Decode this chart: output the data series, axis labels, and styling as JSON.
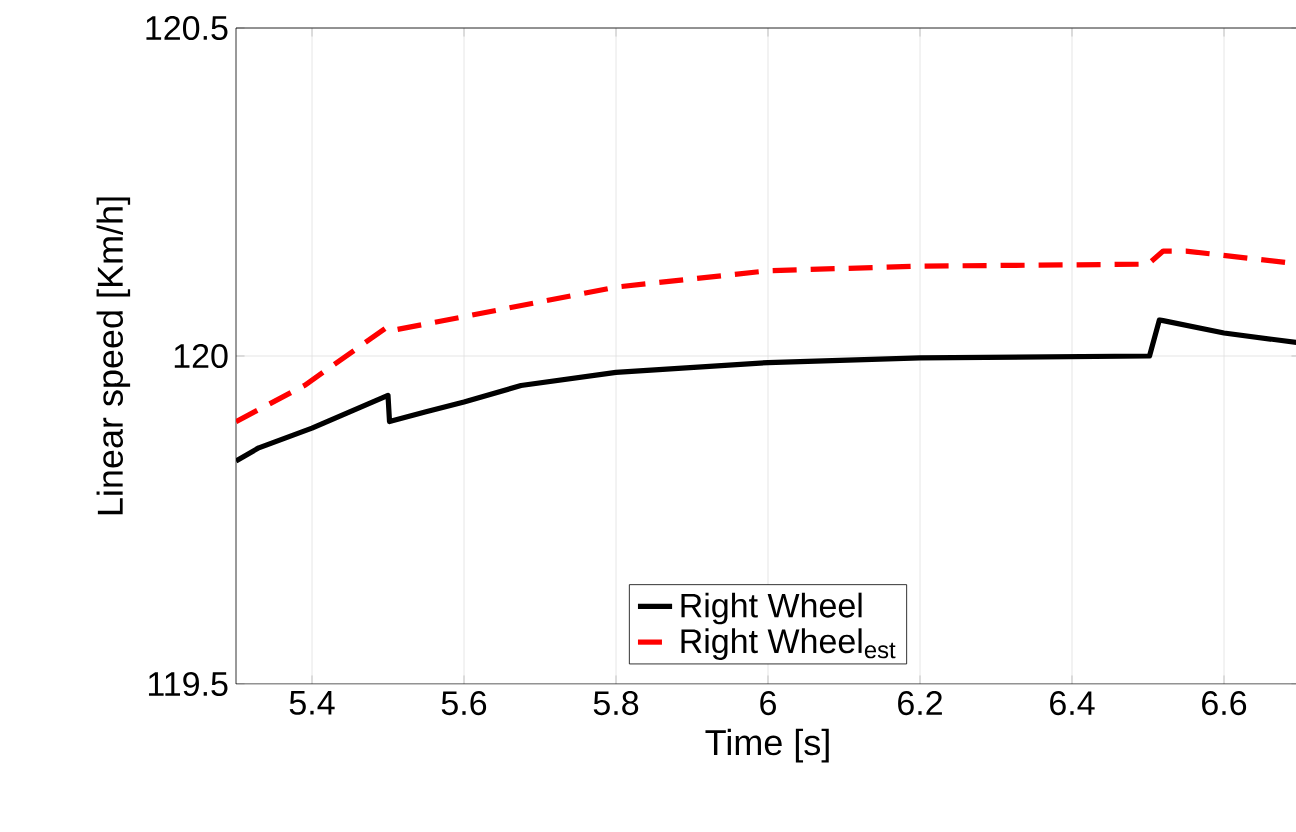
{
  "chart_data": {
    "type": "line",
    "xlabel": "Time [s]",
    "ylabel": "Linear speed [Km/h]",
    "xlim": [
      5.3,
      6.7
    ],
    "ylim": [
      119.5,
      120.5
    ],
    "xticks": [
      5.4,
      5.6,
      5.8,
      6,
      6.2,
      6.4,
      6.6
    ],
    "yticks": [
      119.5,
      120,
      120.5
    ],
    "grid": true,
    "legend": "bottom",
    "series": [
      {
        "name": "Right Wheel",
        "color": "#000000",
        "line_style": "solid",
        "x": [
          5.3,
          5.33,
          5.4,
          5.5,
          5.502,
          5.55,
          5.6,
          5.675,
          5.8,
          6.0,
          6.2,
          6.5,
          6.502,
          6.515,
          6.6,
          6.7
        ],
        "values": [
          119.84,
          119.86,
          119.89,
          119.94,
          119.9,
          119.915,
          119.93,
          119.955,
          119.975,
          119.99,
          119.997,
          120.0,
          120.0,
          120.055,
          120.035,
          120.02
        ]
      },
      {
        "name": "Right Wheel$_{est}$",
        "color": "#ff0000",
        "line_style": "dashed",
        "x": [
          5.3,
          5.39,
          5.5,
          5.51,
          5.6,
          5.8,
          6.0,
          6.2,
          6.5,
          6.52,
          6.55,
          6.7
        ],
        "values": [
          119.9,
          119.955,
          120.045,
          120.04,
          120.06,
          120.105,
          120.13,
          120.137,
          120.14,
          120.16,
          120.16,
          120.14
        ]
      }
    ]
  }
}
